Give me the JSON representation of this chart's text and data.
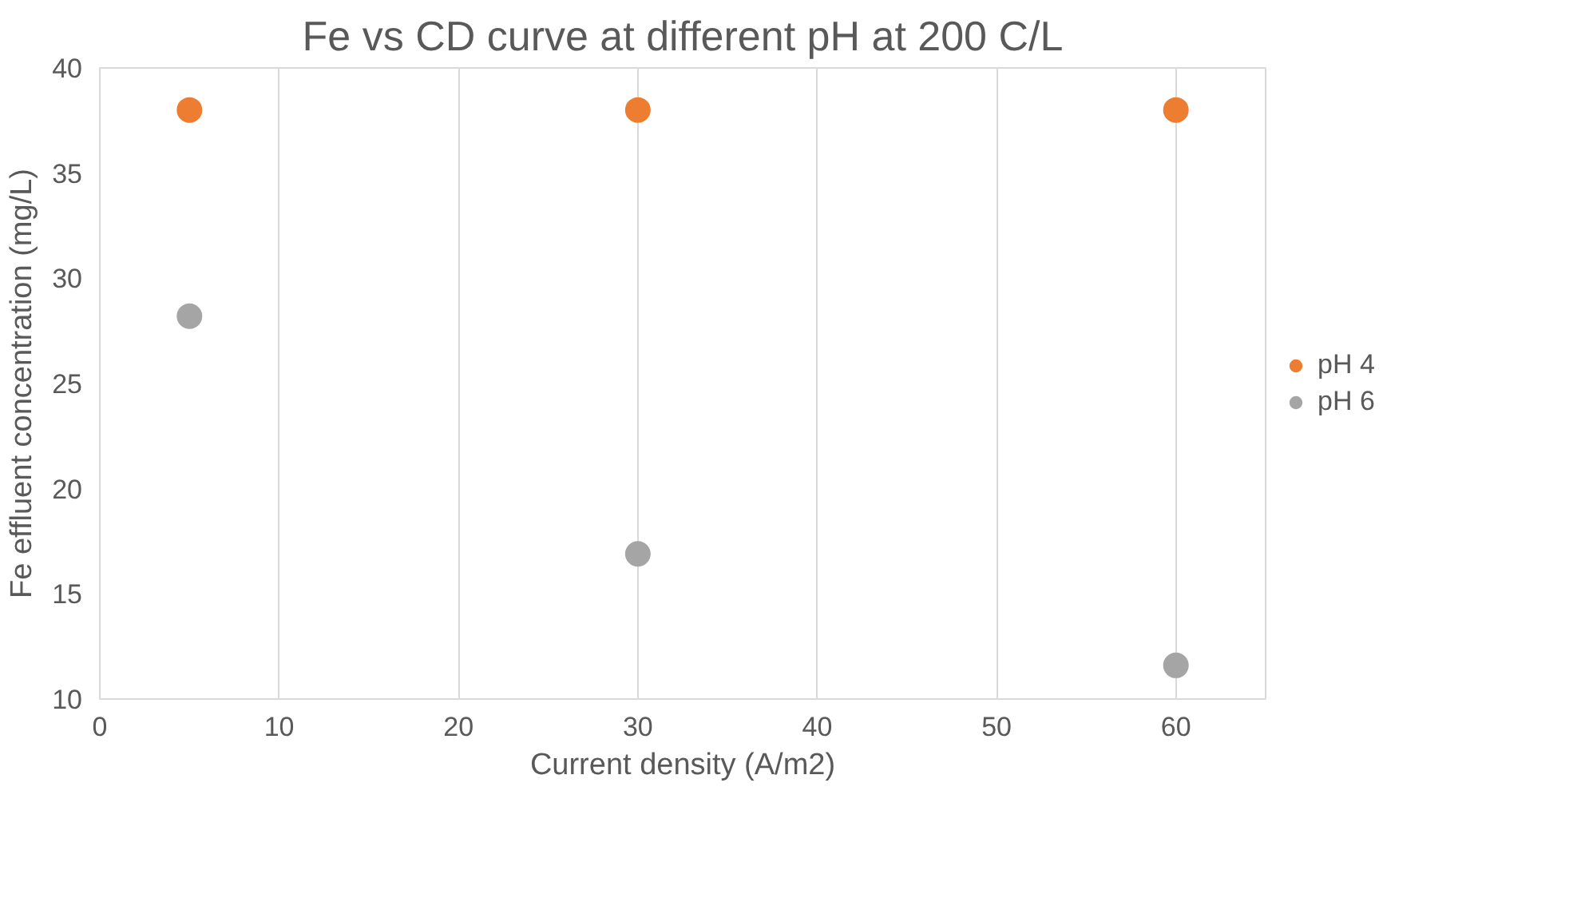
{
  "chart_data": {
    "type": "scatter",
    "title": "Fe vs CD curve at different pH at 200 C/L",
    "xlabel": "Current density (A/m2)",
    "ylabel": "Fe effluent concentration (mg/L)",
    "x": [
      5,
      30,
      60
    ],
    "series": [
      {
        "name": "pH 4",
        "color": "#ed7d31",
        "values": [
          38,
          38,
          38
        ]
      },
      {
        "name": "pH 6",
        "color": "#a5a5a5",
        "values": [
          28.2,
          16.9,
          11.6
        ]
      }
    ],
    "xlim": [
      0,
      65
    ],
    "xticks": [
      0,
      10,
      20,
      30,
      40,
      50,
      60
    ],
    "ylim": [
      10,
      40
    ],
    "yticks": [
      10,
      15,
      20,
      25,
      30,
      35,
      40
    ],
    "grid": "x",
    "legend": "right",
    "marker": "circle"
  }
}
